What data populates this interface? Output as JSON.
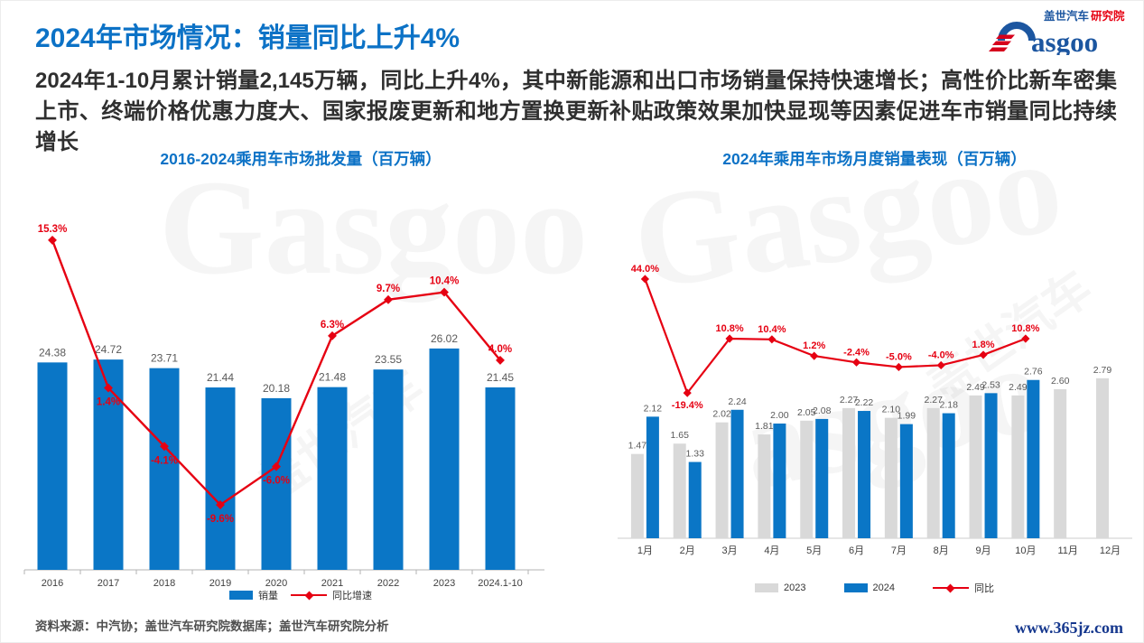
{
  "page": {
    "title": "2024年市场情况：销量同比上升4%",
    "body_text": "2024年1-10月累计销量2,145万辆，同比上升4%，其中新能源和出口市场销量保持快速增长；高性价比新车密集上市、终端价格优惠力度大、国家报废更新和地方置换更新补贴政策效果加快显现等因素促进车市销量同比持续增长",
    "source_note": "资料来源：中汽协；盖世汽车研究院数据库；盖世汽车研究院分析",
    "footer_url": "www.365jz.com"
  },
  "logo": {
    "cn_primary": "盖世汽车",
    "cn_accent": "研究院",
    "wordmark_tail": "asgoo"
  },
  "colors": {
    "title_blue": "#0c72c6",
    "bar_blue": "#0a76c6",
    "bar_gray": "#d9d9d9",
    "line_red": "#e60012",
    "value_label": "#595959",
    "axis_label": "#404040",
    "axis_line": "#b3b3b3"
  },
  "watermarks": [
    "Gasgoo",
    "盖世汽车",
    "Gasgoo",
    "盖世汽车",
    "asgoo"
  ],
  "chart_data": [
    {
      "type": "bar",
      "subtype": "bar+line-combo",
      "title": "2016-2024乘用车市场批发量（百万辆）",
      "categories": [
        "2016",
        "2017",
        "2018",
        "2019",
        "2020",
        "2021",
        "2022",
        "2023",
        "2024.1-10"
      ],
      "series": [
        {
          "name": "销量",
          "type": "bar",
          "color": "#0a76c6",
          "values": [
            24.38,
            24.72,
            23.71,
            21.44,
            20.18,
            21.48,
            23.55,
            26.02,
            21.45
          ]
        },
        {
          "name": "同比增速",
          "type": "line",
          "color": "#e60012",
          "values_pct": [
            15.3,
            1.4,
            -4.1,
            -9.6,
            -6.0,
            6.3,
            9.7,
            10.4,
            4.0
          ],
          "labels": [
            "15.3%",
            "1.4%",
            "-4.1%",
            "-9.6%",
            "-6.0%",
            "6.3%",
            "9.7%",
            "10.4%",
            "4.0%"
          ],
          "label_pos": [
            "above",
            "below",
            "below",
            "below",
            "below",
            "above",
            "above",
            "above",
            "above"
          ]
        }
      ],
      "legend": [
        "销量",
        "同比增速"
      ],
      "legend_position": "bottom",
      "grid": false,
      "bar_ylim": [
        0,
        28
      ],
      "line_ylim_pct": [
        -20,
        18
      ]
    },
    {
      "type": "bar",
      "subtype": "grouped-bar+line-combo",
      "title": "2024年乘用车市场月度销量表现（百万辆）",
      "categories": [
        "1月",
        "2月",
        "3月",
        "4月",
        "5月",
        "6月",
        "7月",
        "8月",
        "9月",
        "10月",
        "11月",
        "12月"
      ],
      "series": [
        {
          "name": "2023",
          "type": "bar",
          "color": "#d9d9d9",
          "values": [
            1.47,
            1.65,
            2.02,
            1.81,
            2.05,
            2.27,
            2.1,
            2.27,
            2.49,
            2.49,
            2.6,
            2.79
          ]
        },
        {
          "name": "2024",
          "type": "bar",
          "color": "#0a76c6",
          "values": [
            2.12,
            1.33,
            2.24,
            2.0,
            2.08,
            2.22,
            1.99,
            2.18,
            2.53,
            2.76,
            null,
            null
          ]
        },
        {
          "name": "同比",
          "type": "line",
          "color": "#e60012",
          "values_pct": [
            44.0,
            -19.4,
            10.8,
            10.4,
            1.2,
            -2.4,
            -5.0,
            -4.0,
            1.8,
            10.8,
            null,
            null
          ],
          "labels": [
            "44.0%",
            "-19.4%",
            "10.8%",
            "10.4%",
            "1.2%",
            "-2.4%",
            "-5.0%",
            "-4.0%",
            "1.8%",
            "10.8%",
            null,
            null
          ],
          "label_pos": [
            "above",
            "below",
            "above",
            "above",
            "above",
            "above",
            "above",
            "above",
            "above",
            "above",
            null,
            null
          ]
        }
      ],
      "legend": [
        "2023",
        "2024",
        "同比"
      ],
      "legend_position": "bottom",
      "grid": false,
      "bar_ylim": [
        0,
        3.2
      ],
      "line_ylim_pct": [
        -30,
        60
      ]
    }
  ]
}
